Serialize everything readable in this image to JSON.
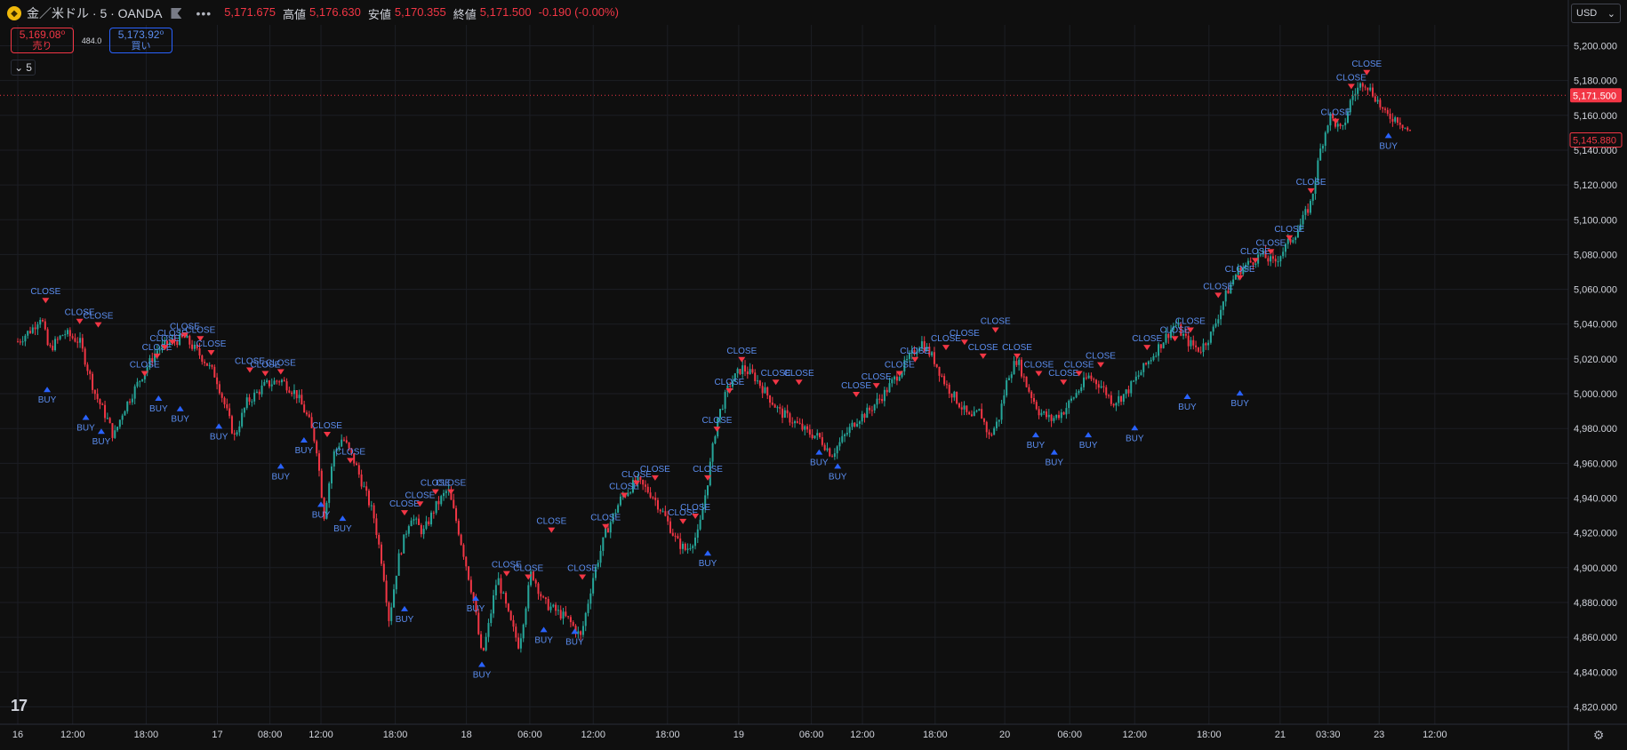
{
  "header": {
    "symbol_icon": "gold-coin-icon",
    "symbol_title": "金／米ドル · 5 · OANDA",
    "more_glyph": "•••",
    "open_value": "5,171.675",
    "high_label": "高値",
    "high_value": "5,176.630",
    "low_label": "安値",
    "low_value": "5,170.355",
    "close_label": "終値",
    "close_value": "5,171.500",
    "change": "-0.190 (-0.00%)"
  },
  "trade": {
    "sell_price": "5,169.08⁰",
    "sell_label": "売り",
    "spread": "484.0",
    "buy_price": "5,173.92⁰",
    "buy_label": "買い"
  },
  "indicator_collapse": {
    "glyph": "⌄",
    "count": "5"
  },
  "currency": {
    "value": "USD",
    "chevron": "⌄"
  },
  "logo_text": "17",
  "settings_icon": "⚙",
  "colors": {
    "bg": "#0f0f0f",
    "up": "#26a69a",
    "down": "#f23645",
    "signal_blue": "#2962ff",
    "label_blue": "#5b8def",
    "grid": "#1c1e24"
  },
  "chart_data": {
    "type": "candlestick",
    "symbol": "金／米ドル",
    "interval": "5",
    "ylim": [
      4810,
      5212
    ],
    "y_ticks": [
      "5,200.000",
      "5,180.000",
      "5,160.000",
      "5,140.000",
      "5,120.000",
      "5,100.000",
      "5,080.000",
      "5,060.000",
      "5,040.000",
      "5,020.000",
      "5,000.000",
      "4,980.000",
      "4,960.000",
      "4,940.000",
      "4,920.000",
      "4,900.000",
      "4,880.000",
      "4,860.000",
      "4,840.000",
      "4,820.000"
    ],
    "y_tick_values": [
      5200,
      5180,
      5160,
      5140,
      5120,
      5100,
      5080,
      5060,
      5040,
      5020,
      5000,
      4980,
      4960,
      4940,
      4920,
      4900,
      4880,
      4860,
      4840,
      4820
    ],
    "x_ticks": [
      "16",
      "12:00",
      "18:00",
      "17",
      "08:00",
      "12:00",
      "18:00",
      "18",
      "06:00",
      "12:00",
      "18:00",
      "19",
      "06:00",
      "12:00",
      "18:00",
      "20",
      "06:00",
      "12:00",
      "18:00",
      "21",
      "03:30",
      "23",
      "12:00"
    ],
    "x_tick_positions": [
      0.0,
      0.0355,
      0.083,
      0.129,
      0.163,
      0.196,
      0.244,
      0.29,
      0.331,
      0.372,
      0.42,
      0.466,
      0.513,
      0.546,
      0.593,
      0.638,
      0.68,
      0.722,
      0.77,
      0.816,
      0.847,
      0.88,
      0.916
    ],
    "price_path": [
      [
        0.0,
        5030
      ],
      [
        0.01,
        5038
      ],
      [
        0.015,
        5045
      ],
      [
        0.02,
        5025
      ],
      [
        0.03,
        5035
      ],
      [
        0.04,
        5030
      ],
      [
        0.05,
        5000
      ],
      [
        0.058,
        4985
      ],
      [
        0.062,
        4975
      ],
      [
        0.068,
        4990
      ],
      [
        0.08,
        5010
      ],
      [
        0.09,
        5025
      ],
      [
        0.1,
        5030
      ],
      [
        0.108,
        5032
      ],
      [
        0.12,
        5020
      ],
      [
        0.128,
        5010
      ],
      [
        0.135,
        4990
      ],
      [
        0.14,
        4975
      ],
      [
        0.148,
        4995
      ],
      [
        0.16,
        5005
      ],
      [
        0.17,
        5008
      ],
      [
        0.18,
        5000
      ],
      [
        0.188,
        4985
      ],
      [
        0.193,
        4970
      ],
      [
        0.198,
        4930
      ],
      [
        0.204,
        4965
      ],
      [
        0.21,
        4975
      ],
      [
        0.218,
        4960
      ],
      [
        0.224,
        4945
      ],
      [
        0.23,
        4930
      ],
      [
        0.236,
        4900
      ],
      [
        0.24,
        4870
      ],
      [
        0.246,
        4905
      ],
      [
        0.254,
        4930
      ],
      [
        0.262,
        4920
      ],
      [
        0.27,
        4935
      ],
      [
        0.278,
        4945
      ],
      [
        0.284,
        4925
      ],
      [
        0.289,
        4905
      ],
      [
        0.295,
        4880
      ],
      [
        0.3,
        4848
      ],
      [
        0.304,
        4865
      ],
      [
        0.31,
        4895
      ],
      [
        0.318,
        4870
      ],
      [
        0.324,
        4855
      ],
      [
        0.332,
        4898
      ],
      [
        0.34,
        4880
      ],
      [
        0.348,
        4875
      ],
      [
        0.356,
        4870
      ],
      [
        0.364,
        4860
      ],
      [
        0.372,
        4895
      ],
      [
        0.38,
        4920
      ],
      [
        0.39,
        4940
      ],
      [
        0.4,
        4950
      ],
      [
        0.41,
        4942
      ],
      [
        0.418,
        4930
      ],
      [
        0.426,
        4915
      ],
      [
        0.432,
        4910
      ],
      [
        0.44,
        4920
      ],
      [
        0.446,
        4950
      ],
      [
        0.452,
        4985
      ],
      [
        0.46,
        5005
      ],
      [
        0.468,
        5015
      ],
      [
        0.476,
        5010
      ],
      [
        0.484,
        5000
      ],
      [
        0.492,
        4990
      ],
      [
        0.5,
        4985
      ],
      [
        0.51,
        4978
      ],
      [
        0.518,
        4975
      ],
      [
        0.526,
        4965
      ],
      [
        0.534,
        4975
      ],
      [
        0.542,
        4985
      ],
      [
        0.55,
        4990
      ],
      [
        0.56,
        5000
      ],
      [
        0.568,
        5010
      ],
      [
        0.576,
        5020
      ],
      [
        0.584,
        5030
      ],
      [
        0.592,
        5020
      ],
      [
        0.6,
        5005
      ],
      [
        0.608,
        4995
      ],
      [
        0.616,
        4985
      ],
      [
        0.622,
        4990
      ],
      [
        0.628,
        4975
      ],
      [
        0.634,
        4985
      ],
      [
        0.64,
        5010
      ],
      [
        0.646,
        5020
      ],
      [
        0.652,
        5005
      ],
      [
        0.66,
        4990
      ],
      [
        0.668,
        4985
      ],
      [
        0.676,
        4990
      ],
      [
        0.684,
        5000
      ],
      [
        0.692,
        5010
      ],
      [
        0.7,
        5005
      ],
      [
        0.708,
        4995
      ],
      [
        0.716,
        5000
      ],
      [
        0.724,
        5010
      ],
      [
        0.732,
        5020
      ],
      [
        0.74,
        5030
      ],
      [
        0.748,
        5040
      ],
      [
        0.756,
        5030
      ],
      [
        0.764,
        5025
      ],
      [
        0.772,
        5035
      ],
      [
        0.78,
        5055
      ],
      [
        0.788,
        5070
      ],
      [
        0.796,
        5075
      ],
      [
        0.804,
        5080
      ],
      [
        0.812,
        5075
      ],
      [
        0.82,
        5085
      ],
      [
        0.828,
        5095
      ],
      [
        0.836,
        5110
      ],
      [
        0.842,
        5140
      ],
      [
        0.848,
        5160
      ],
      [
        0.856,
        5150
      ],
      [
        0.862,
        5170
      ],
      [
        0.87,
        5180
      ],
      [
        0.878,
        5170
      ],
      [
        0.884,
        5160
      ],
      [
        0.892,
        5158
      ],
      [
        0.9,
        5150
      ]
    ],
    "last_price_label": "5,171.500",
    "last_price_value": 5171.5,
    "second_price_label": "5,145.880",
    "second_price_value": 5145.88,
    "signal_labels": {
      "close": "CLOSE",
      "buy": "BUY"
    },
    "close_signals": [
      [
        0.018,
        5052
      ],
      [
        0.04,
        5040
      ],
      [
        0.052,
        5038
      ],
      [
        0.082,
        5010
      ],
      [
        0.09,
        5020
      ],
      [
        0.095,
        5025
      ],
      [
        0.1,
        5028
      ],
      [
        0.108,
        5032
      ],
      [
        0.118,
        5030
      ],
      [
        0.125,
        5022
      ],
      [
        0.15,
        5012
      ],
      [
        0.16,
        5010
      ],
      [
        0.17,
        5011
      ],
      [
        0.2,
        4975
      ],
      [
        0.215,
        4960
      ],
      [
        0.25,
        4930
      ],
      [
        0.26,
        4935
      ],
      [
        0.27,
        4942
      ],
      [
        0.28,
        4942
      ],
      [
        0.316,
        4895
      ],
      [
        0.33,
        4893
      ],
      [
        0.345,
        4920
      ],
      [
        0.365,
        4893
      ],
      [
        0.38,
        4922
      ],
      [
        0.392,
        4940
      ],
      [
        0.4,
        4947
      ],
      [
        0.412,
        4950
      ],
      [
        0.43,
        4925
      ],
      [
        0.438,
        4928
      ],
      [
        0.446,
        4950
      ],
      [
        0.452,
        4978
      ],
      [
        0.46,
        5000
      ],
      [
        0.468,
        5018
      ],
      [
        0.49,
        5005
      ],
      [
        0.505,
        5005
      ],
      [
        0.542,
        4998
      ],
      [
        0.555,
        5003
      ],
      [
        0.57,
        5010
      ],
      [
        0.58,
        5018
      ],
      [
        0.6,
        5025
      ],
      [
        0.612,
        5028
      ],
      [
        0.624,
        5020
      ],
      [
        0.632,
        5035
      ],
      [
        0.646,
        5020
      ],
      [
        0.66,
        5010
      ],
      [
        0.676,
        5005
      ],
      [
        0.686,
        5010
      ],
      [
        0.7,
        5015
      ],
      [
        0.73,
        5025
      ],
      [
        0.748,
        5030
      ],
      [
        0.758,
        5035
      ],
      [
        0.776,
        5055
      ],
      [
        0.79,
        5065
      ],
      [
        0.8,
        5075
      ],
      [
        0.81,
        5080
      ],
      [
        0.822,
        5088
      ],
      [
        0.836,
        5115
      ],
      [
        0.852,
        5155
      ],
      [
        0.862,
        5175
      ],
      [
        0.872,
        5183
      ]
    ],
    "buy_signals": [
      [
        0.019,
        5004
      ],
      [
        0.044,
        4988
      ],
      [
        0.054,
        4980
      ],
      [
        0.091,
        4999
      ],
      [
        0.105,
        4993
      ],
      [
        0.13,
        4983
      ],
      [
        0.17,
        4960
      ],
      [
        0.185,
        4975
      ],
      [
        0.196,
        4938
      ],
      [
        0.21,
        4930
      ],
      [
        0.25,
        4878
      ],
      [
        0.3,
        4846
      ],
      [
        0.296,
        4884
      ],
      [
        0.34,
        4866
      ],
      [
        0.36,
        4865
      ],
      [
        0.446,
        4910
      ],
      [
        0.518,
        4968
      ],
      [
        0.53,
        4960
      ],
      [
        0.658,
        4978
      ],
      [
        0.67,
        4968
      ],
      [
        0.692,
        4978
      ],
      [
        0.722,
        4982
      ],
      [
        0.756,
        5000
      ],
      [
        0.79,
        5002
      ],
      [
        0.886,
        5150
      ]
    ]
  }
}
